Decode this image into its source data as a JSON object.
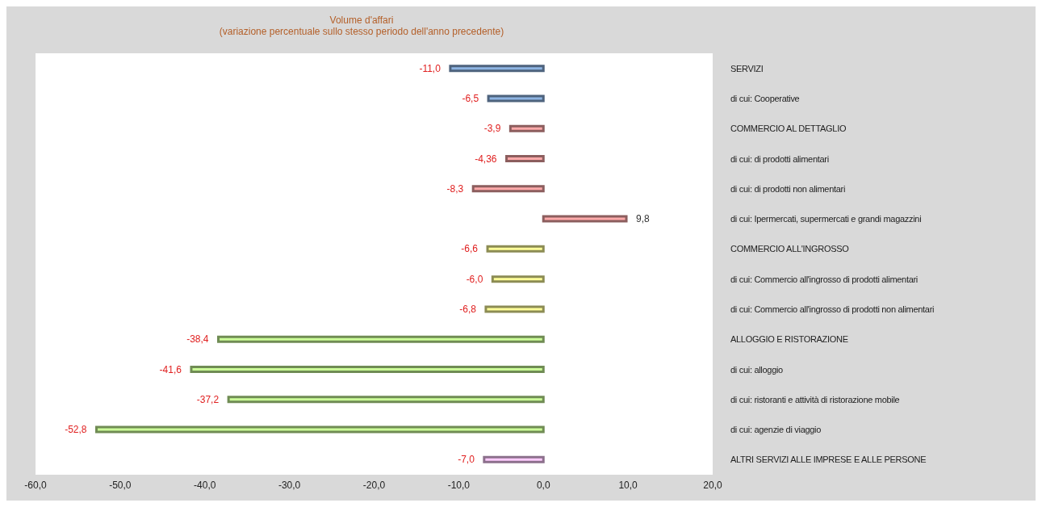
{
  "chart_data": {
    "type": "bar",
    "orientation": "horizontal",
    "title": "Volume d'affari",
    "subtitle": "(variazione percentuale sullo stesso periodo dell'anno precedente)",
    "categories": [
      "SERVIZI",
      "di cui: Cooperative",
      "COMMERCIO AL DETTAGLIO",
      "di cui: di prodotti alimentari",
      "di cui: di prodotti non alimentari",
      "di cui: Ipermercati, supermercati e grandi magazzini",
      "COMMERCIO ALL'INGROSSO",
      "di cui: Commercio all'ingrosso di prodotti alimentari",
      "di cui: Commercio all'ingrosso di prodotti non alimentari",
      "ALLOGGIO E RISTORAZIONE",
      "di cui: alloggio",
      "di cui: ristoranti e attività di ristorazione mobile",
      "di cui: agenzie di viaggio",
      "ALTRI SERVIZI ALLE IMPRESE E ALLE PERSONE"
    ],
    "values": [
      -11.0,
      -6.5,
      -3.9,
      -4.36,
      -8.3,
      9.8,
      -6.6,
      -6.0,
      -6.8,
      -38.4,
      -41.6,
      -37.2,
      -52.8,
      -7.0
    ],
    "value_labels": [
      "-11,0",
      "-6,5",
      "-3,9",
      "-4,36",
      "-8,3",
      "9,8",
      "-6,6",
      "-6,0",
      "-6,8",
      "-38,4",
      "-41,6",
      "-37,2",
      "-52,8",
      "-7,0"
    ],
    "colors": [
      "#8eb4e3",
      "#8eb4e3",
      "#ffaaaa",
      "#ffaaaa",
      "#ffaaaa",
      "#ffaaaa",
      "#ffff99",
      "#ffff99",
      "#ffff99",
      "#ccff99",
      "#ccff99",
      "#ccff99",
      "#ccff99",
      "#ffccff"
    ],
    "xlim": [
      -60,
      20
    ],
    "xticks": [
      {
        "value": -60,
        "label": "-60,0"
      },
      {
        "value": -50,
        "label": "-50,0"
      },
      {
        "value": -40,
        "label": "-40,0"
      },
      {
        "value": -30,
        "label": "-30,0"
      },
      {
        "value": -20,
        "label": "-20,0"
      },
      {
        "value": -10,
        "label": "-10,0"
      },
      {
        "value": 0,
        "label": "0,0"
      },
      {
        "value": 10,
        "label": "10,0"
      },
      {
        "value": 20,
        "label": "20,0"
      }
    ]
  }
}
